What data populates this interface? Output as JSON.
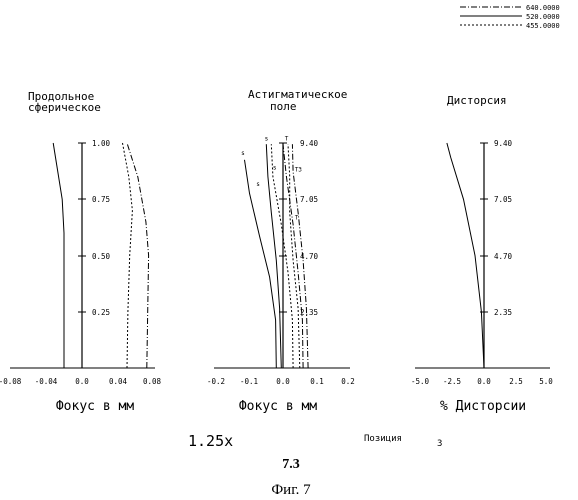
{
  "legend": [
    {
      "label": "640.0000",
      "dash": "6 2 1 2"
    },
    {
      "label": "520.0000",
      "dash": ""
    },
    {
      "label": "455.0000",
      "dash": "2 2"
    }
  ],
  "footer": {
    "magnification": "1.25x",
    "position_label": "Позиция",
    "position_value": "3",
    "code": "7.3",
    "figure": "Фиг. 7"
  },
  "chart_data": [
    {
      "type": "line",
      "title_lines": [
        "Продольное",
        "сферическое"
      ],
      "xlabel": "Фокус в мм",
      "xlim": [
        -0.08,
        0.08
      ],
      "xticks": [
        "-0.08",
        "-0.04",
        "0.0",
        "0.04",
        "0.08"
      ],
      "ylim": [
        0,
        1
      ],
      "yticks": [
        {
          "v": 1.0,
          "label": "1.00"
        },
        {
          "v": 0.75,
          "label": "0.75"
        },
        {
          "v": 0.5,
          "label": "0.50"
        },
        {
          "v": 0.25,
          "label": "0.25"
        }
      ],
      "series": [
        {
          "dash": "",
          "points": [
            [
              -0.02,
              0
            ],
            [
              -0.02,
              0.3
            ],
            [
              -0.02,
              0.6
            ],
            [
              -0.022,
              0.75
            ],
            [
              -0.028,
              0.9
            ],
            [
              -0.032,
              1.0
            ]
          ]
        },
        {
          "dash": "2 2",
          "points": [
            [
              0.05,
              0
            ],
            [
              0.051,
              0.25
            ],
            [
              0.053,
              0.5
            ],
            [
              0.056,
              0.7
            ],
            [
              0.052,
              0.85
            ],
            [
              0.045,
              1.0
            ]
          ]
        },
        {
          "dash": "6 2 1 2",
          "points": [
            [
              0.072,
              0
            ],
            [
              0.073,
              0.25
            ],
            [
              0.074,
              0.5
            ],
            [
              0.071,
              0.65
            ],
            [
              0.062,
              0.85
            ],
            [
              0.05,
              1.0
            ]
          ]
        }
      ]
    },
    {
      "type": "line",
      "title_lines": [
        "Астигматическое",
        "поле"
      ],
      "xlabel": "Фокус в мм",
      "xlim": [
        -0.2,
        0.2
      ],
      "xticks": [
        "-0.2",
        "-0.1",
        "0.0",
        "0.1",
        "0.2"
      ],
      "ylim": [
        0,
        9.4
      ],
      "yticks": [
        {
          "v": 9.4,
          "label": "9.40"
        },
        {
          "v": 7.05,
          "label": "7.05"
        },
        {
          "v": 4.7,
          "label": "4.70"
        },
        {
          "v": 2.35,
          "label": "2.35"
        }
      ],
      "annotations": [
        {
          "text": "s",
          "x": -0.125,
          "y": 8.9
        },
        {
          "text": "s",
          "x": -0.055,
          "y": 9.5
        },
        {
          "text": "T",
          "x": 0.005,
          "y": 9.5
        },
        {
          "text": "s",
          "x": -0.03,
          "y": 8.3
        },
        {
          "text": "s",
          "x": -0.08,
          "y": 7.6
        },
        {
          "text": "T3",
          "x": 0.035,
          "y": 8.2
        },
        {
          "text": "T",
          "x": 0.035,
          "y": 6.2
        }
      ],
      "series": [
        {
          "dash": "",
          "points": [
            [
              -0.02,
              0
            ],
            [
              -0.022,
              2.0
            ],
            [
              -0.04,
              3.8
            ],
            [
              -0.07,
              5.5
            ],
            [
              -0.1,
              7.3
            ],
            [
              -0.115,
              8.7
            ]
          ]
        },
        {
          "dash": "",
          "points": [
            [
              -0.005,
              0
            ],
            [
              -0.01,
              2.5
            ],
            [
              -0.02,
              4.5
            ],
            [
              -0.035,
              6.5
            ],
            [
              -0.045,
              8.0
            ],
            [
              -0.05,
              9.35
            ]
          ]
        },
        {
          "dash": "2 2",
          "points": [
            [
              0.03,
              0
            ],
            [
              0.028,
              2.0
            ],
            [
              0.015,
              4.0
            ],
            [
              -0.005,
              6.0
            ],
            [
              -0.03,
              8.0
            ],
            [
              -0.035,
              9.35
            ]
          ]
        },
        {
          "dash": "2 2",
          "points": [
            [
              0.05,
              0
            ],
            [
              0.045,
              2.5
            ],
            [
              0.03,
              4.5
            ],
            [
              0.02,
              6.5
            ],
            [
              0.02,
              8.0
            ],
            [
              0.015,
              9.35
            ]
          ]
        },
        {
          "dash": "6 2 1 2",
          "points": [
            [
              0.06,
              0
            ],
            [
              0.058,
              2.0
            ],
            [
              0.045,
              4.0
            ],
            [
              0.03,
              6.0
            ],
            [
              0.01,
              8.0
            ],
            [
              0.0,
              9.35
            ]
          ]
        },
        {
          "dash": "6 2 1 2",
          "points": [
            [
              0.075,
              0
            ],
            [
              0.07,
              2.5
            ],
            [
              0.06,
              4.5
            ],
            [
              0.045,
              6.5
            ],
            [
              0.03,
              8.2
            ],
            [
              0.028,
              9.35
            ]
          ]
        }
      ]
    },
    {
      "type": "line",
      "title_lines": [
        "Дисторсия"
      ],
      "xlabel": "% Дисторсии",
      "xlim": [
        -5,
        5
      ],
      "xticks": [
        "-5.0",
        "-2.5",
        "0.0",
        "2.5",
        "5.0"
      ],
      "ylim": [
        0,
        9.4
      ],
      "yticks": [
        {
          "v": 9.4,
          "label": "9.40"
        },
        {
          "v": 7.05,
          "label": "7.05"
        },
        {
          "v": 4.7,
          "label": "4.70"
        },
        {
          "v": 2.35,
          "label": "2.35"
        }
      ],
      "series": [
        {
          "dash": "",
          "points": [
            [
              0,
              0
            ],
            [
              -0.2,
              2.35
            ],
            [
              -0.7,
              4.7
            ],
            [
              -1.6,
              7.05
            ],
            [
              -2.6,
              8.8
            ],
            [
              -2.9,
              9.4
            ]
          ]
        }
      ]
    }
  ]
}
